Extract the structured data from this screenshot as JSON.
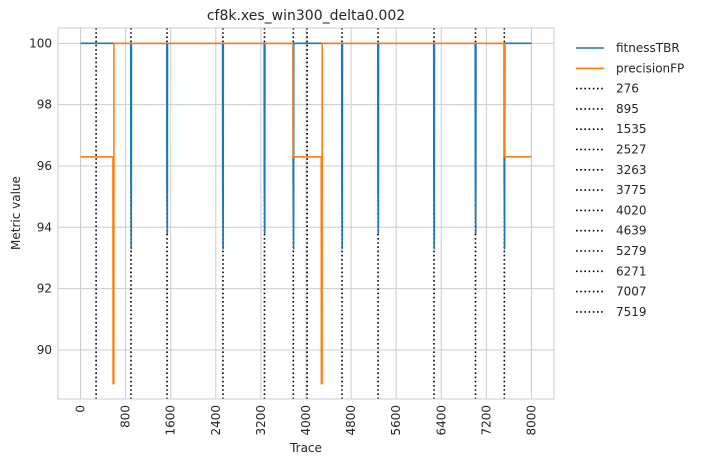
{
  "chart_data": {
    "type": "line",
    "title": "cf8k.xes_win300_delta0.002",
    "xlabel": "Trace",
    "ylabel": "Metric value",
    "xlim": [
      -400,
      8400
    ],
    "ylim": [
      88.4,
      100.5
    ],
    "x_ticks": [
      0,
      800,
      1600,
      2400,
      3200,
      4000,
      4800,
      5600,
      6400,
      7200,
      8000
    ],
    "x_tick_labels": [
      "0",
      "800",
      "1600",
      "2400",
      "3200",
      "4000",
      "4800",
      "5600",
      "6400",
      "7200",
      "8000"
    ],
    "y_ticks": [
      90,
      92,
      94,
      96,
      98,
      100
    ],
    "y_tick_labels": [
      "90",
      "92",
      "94",
      "96",
      "98",
      "100"
    ],
    "grid": true,
    "legend_position": "outside-top-right",
    "series": [
      {
        "name": "fitnessTBR",
        "color": "#1f77b4",
        "points": [
          [
            0,
            100
          ],
          [
            890,
            100
          ],
          [
            892,
            96.3
          ],
          [
            900,
            93.3
          ],
          [
            903,
            100
          ],
          [
            1530,
            100
          ],
          [
            1532,
            95.5
          ],
          [
            1540,
            93.8
          ],
          [
            1543,
            100
          ],
          [
            2520,
            100
          ],
          [
            2522,
            95.5
          ],
          [
            2530,
            93.3
          ],
          [
            2533,
            100
          ],
          [
            3258,
            100
          ],
          [
            3260,
            95.5
          ],
          [
            3268,
            93.8
          ],
          [
            3271,
            100
          ],
          [
            3770,
            100
          ],
          [
            3772,
            95.5
          ],
          [
            3780,
            93.3
          ],
          [
            3783,
            100
          ],
          [
            4634,
            100
          ],
          [
            4636,
            95.5
          ],
          [
            4644,
            93.3
          ],
          [
            4647,
            100
          ],
          [
            5274,
            100
          ],
          [
            5276,
            95.5
          ],
          [
            5284,
            93.8
          ],
          [
            5287,
            100
          ],
          [
            6266,
            100
          ],
          [
            6268,
            95.5
          ],
          [
            6276,
            93.3
          ],
          [
            6279,
            100
          ],
          [
            7002,
            100
          ],
          [
            7004,
            95.5
          ],
          [
            7012,
            93.8
          ],
          [
            7015,
            100
          ],
          [
            7514,
            100
          ],
          [
            7516,
            95.5
          ],
          [
            7524,
            93.3
          ],
          [
            7527,
            100
          ],
          [
            8000,
            100
          ]
        ]
      },
      {
        "name": "precisionFP",
        "color": "#ff7f0e",
        "points": [
          [
            0,
            96.3
          ],
          [
            575,
            96.3
          ],
          [
            578,
            88.9
          ],
          [
            590,
            88.9
          ],
          [
            593,
            100
          ],
          [
            3770,
            100
          ],
          [
            3772,
            96.3
          ],
          [
            4270,
            96.3
          ],
          [
            4273,
            88.9
          ],
          [
            4285,
            88.9
          ],
          [
            4288,
            100
          ],
          [
            7519,
            100
          ],
          [
            7521,
            96.3
          ],
          [
            8000,
            96.3
          ]
        ]
      }
    ],
    "vlines": {
      "style": "dotted",
      "color": "#000000",
      "values": [
        276,
        895,
        1535,
        2527,
        3263,
        3775,
        4020,
        4639,
        5279,
        6271,
        7007,
        7519
      ],
      "labels": [
        "276",
        "895",
        "1535",
        "2527",
        "3263",
        "3775",
        "4020",
        "4639",
        "5279",
        "6271",
        "7007",
        "7519"
      ]
    }
  }
}
